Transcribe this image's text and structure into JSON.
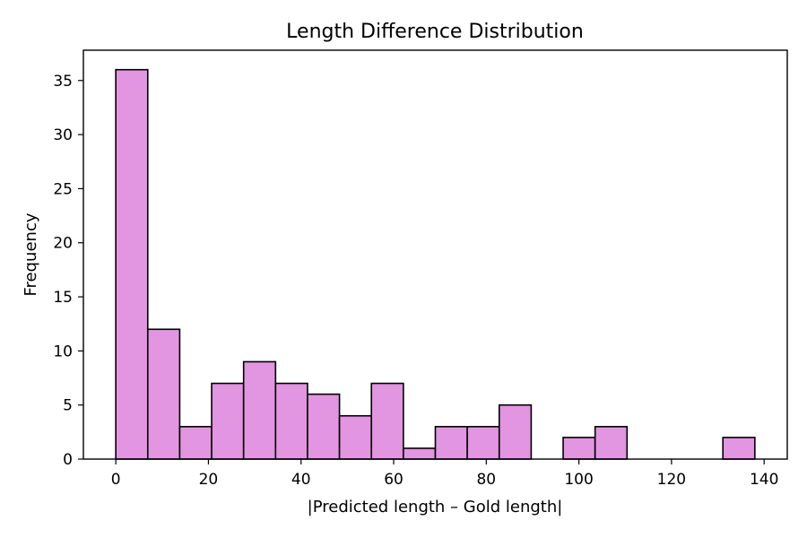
{
  "chart_data": {
    "type": "bar",
    "title": "Length Difference Distribution",
    "xlabel": "|Predicted length – Gold length|",
    "ylabel": "Frequency",
    "bar_color": "#e295e0",
    "edge_color": "#000000",
    "xlim": [
      -7,
      145
    ],
    "ylim": [
      0,
      37.8
    ],
    "xticks": [
      0,
      20,
      40,
      60,
      80,
      100,
      120,
      140
    ],
    "yticks": [
      0,
      5,
      10,
      15,
      20,
      25,
      30,
      35
    ],
    "bins": [
      {
        "x0": 0.0,
        "x1": 6.9,
        "value": 36
      },
      {
        "x0": 6.9,
        "x1": 13.8,
        "value": 12
      },
      {
        "x0": 13.8,
        "x1": 20.7,
        "value": 3
      },
      {
        "x0": 20.7,
        "x1": 27.6,
        "value": 7
      },
      {
        "x0": 27.6,
        "x1": 34.5,
        "value": 9
      },
      {
        "x0": 34.5,
        "x1": 41.4,
        "value": 7
      },
      {
        "x0": 41.4,
        "x1": 48.3,
        "value": 6
      },
      {
        "x0": 48.3,
        "x1": 55.2,
        "value": 4
      },
      {
        "x0": 55.2,
        "x1": 62.1,
        "value": 7
      },
      {
        "x0": 62.1,
        "x1": 69.0,
        "value": 1
      },
      {
        "x0": 69.0,
        "x1": 75.9,
        "value": 3
      },
      {
        "x0": 75.9,
        "x1": 82.8,
        "value": 3
      },
      {
        "x0": 82.8,
        "x1": 89.7,
        "value": 5
      },
      {
        "x0": 89.7,
        "x1": 96.6,
        "value": 0
      },
      {
        "x0": 96.6,
        "x1": 103.5,
        "value": 2
      },
      {
        "x0": 103.5,
        "x1": 110.4,
        "value": 3
      },
      {
        "x0": 110.4,
        "x1": 117.3,
        "value": 0
      },
      {
        "x0": 117.3,
        "x1": 124.2,
        "value": 0
      },
      {
        "x0": 124.2,
        "x1": 131.1,
        "value": 0
      },
      {
        "x0": 131.1,
        "x1": 138.0,
        "value": 2
      }
    ]
  }
}
